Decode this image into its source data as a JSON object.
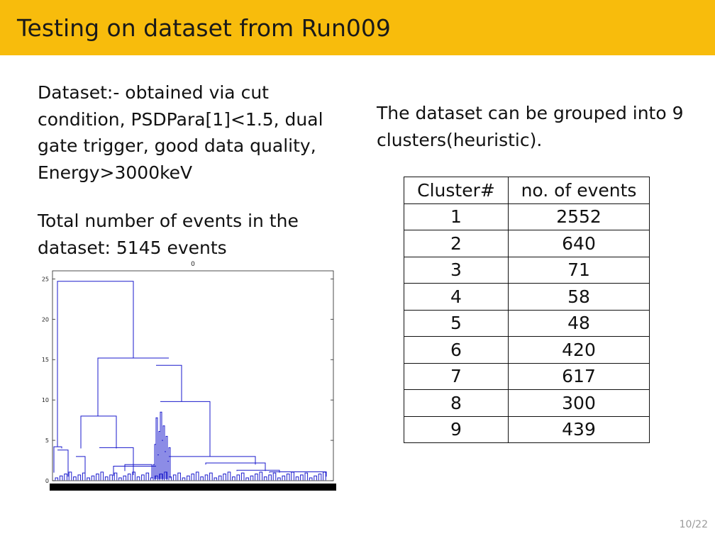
{
  "slide": {
    "title": "Testing on dataset from Run009",
    "left_paragraph_1": "Dataset:- obtained via cut condition, PSDPara[1]<1.5, dual gate trigger, good data quality, Energy>3000keV",
    "left_paragraph_2": "Total number of events in the dataset: 5145 events",
    "right_paragraph": "The dataset can be grouped into 9 clusters(heuristic).",
    "page_number": "10/22"
  },
  "table": {
    "headers": [
      "Cluster#",
      "no. of events"
    ],
    "rows": [
      [
        "1",
        "2552"
      ],
      [
        "2",
        "640"
      ],
      [
        "3",
        "71"
      ],
      [
        "4",
        "58"
      ],
      [
        "5",
        "48"
      ],
      [
        "6",
        "420"
      ],
      [
        "7",
        "617"
      ],
      [
        "8",
        "300"
      ],
      [
        "9",
        "439"
      ]
    ]
  },
  "chart_data": {
    "type": "dendrogram",
    "title": "0",
    "ylim": [
      0,
      26
    ],
    "yticks": [
      "0",
      "5",
      "10",
      "15",
      "20",
      "25"
    ],
    "line_color": "#1a1acc",
    "x_leaf_labels_color": "#000000"
  }
}
